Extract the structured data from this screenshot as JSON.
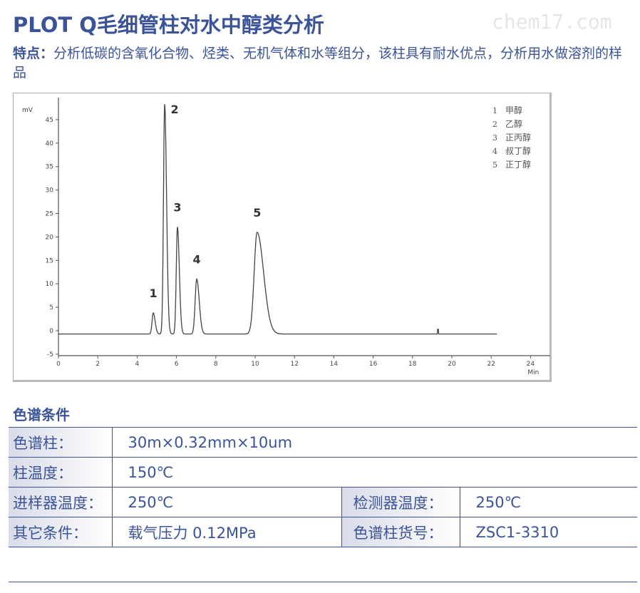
{
  "title": "PLOT Q毛细管柱对水中醇类分析",
  "watermark": "chem17.com",
  "features": {
    "label": "特点：",
    "text": "分析低碳的含氧化合物、烃类、无机气体和水等组分，该柱具有耐水优点，分析用水做溶剂的样品"
  },
  "chart_data": {
    "type": "line",
    "ylabel": "mV",
    "xlabel": "Min",
    "xlim": [
      0,
      25
    ],
    "ylim": [
      -5,
      50
    ],
    "xticks": [
      0,
      2,
      4,
      6,
      8,
      10,
      12,
      14,
      16,
      18,
      20,
      22,
      24
    ],
    "yticks": [
      -5,
      0,
      5,
      10,
      15,
      20,
      25,
      30,
      35,
      40,
      45
    ],
    "baseline": -0.7,
    "peaks": [
      {
        "label": "1",
        "rt": 4.82,
        "height": 4.5,
        "width": 0.06
      },
      {
        "label": "2",
        "rt": 5.4,
        "height": 49,
        "width": 0.06
      },
      {
        "label": "3",
        "rt": 6.05,
        "height": 22.8,
        "width": 0.06
      },
      {
        "label": "4",
        "rt": 7.03,
        "height": 11.7,
        "width": 0.08
      },
      {
        "label": "5",
        "rt": 10.1,
        "height": 21.7,
        "width": 0.15
      }
    ],
    "run_end": 22.3,
    "legend": [
      {
        "num": "1",
        "name": "甲醇"
      },
      {
        "num": "2",
        "name": "乙醇"
      },
      {
        "num": "3",
        "name": "正丙醇"
      },
      {
        "num": "4",
        "name": "叔丁醇"
      },
      {
        "num": "5",
        "name": "正丁醇"
      }
    ],
    "legend_position": "top-right",
    "grid": false
  },
  "conditions": {
    "heading": "色谱条件",
    "rows": [
      {
        "label": "色谱柱：",
        "value": "30m×0.32mm×10um"
      },
      {
        "label": "柱温度：",
        "value": "150℃"
      },
      {
        "label": "进样器温度：",
        "value": "250℃",
        "label2": "检测器温度：",
        "value2": "250℃"
      },
      {
        "label": "其它条件：",
        "value": "载气压力 0.12MPa",
        "label2": "色谱柱货号：",
        "value2": "ZSC1-3310"
      }
    ]
  },
  "colors": {
    "accent": "#3b5499"
  }
}
